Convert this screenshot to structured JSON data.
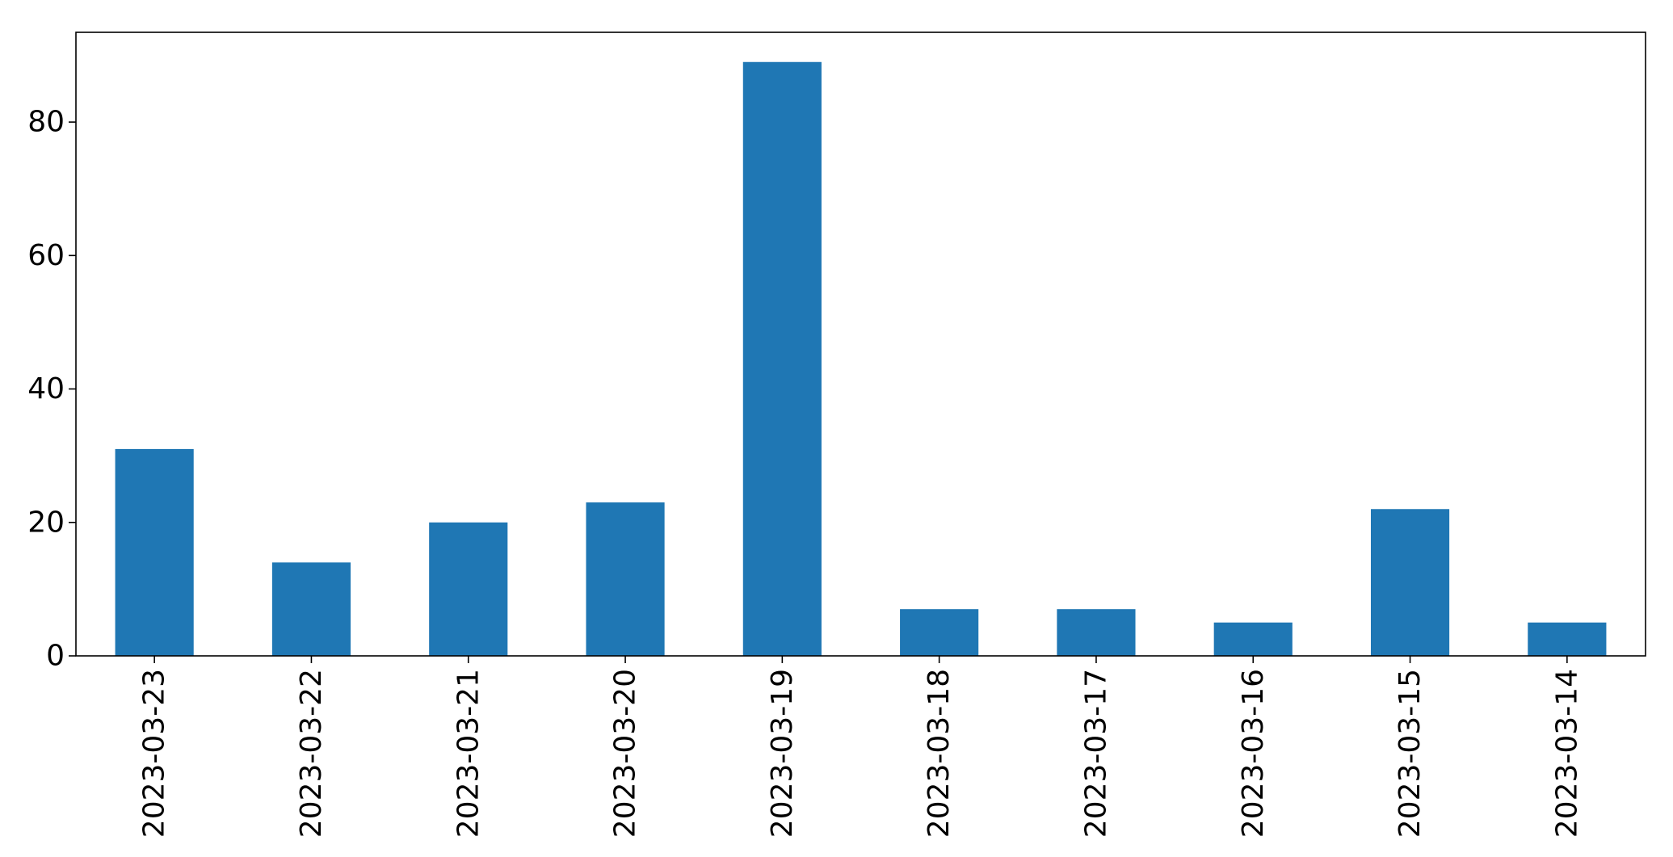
{
  "chart_data": {
    "type": "bar",
    "title": "",
    "xlabel": "",
    "ylabel": "",
    "categories": [
      "2023-03-23",
      "2023-03-22",
      "2023-03-21",
      "2023-03-20",
      "2023-03-19",
      "2023-03-18",
      "2023-03-17",
      "2023-03-16",
      "2023-03-15",
      "2023-03-14"
    ],
    "values": [
      31,
      14,
      20,
      23,
      89,
      7,
      7,
      5,
      22,
      5
    ],
    "ylim": [
      0,
      93.45
    ],
    "yticks": [
      0,
      20,
      40,
      60,
      80
    ],
    "ytick_labels": [
      "0",
      "20",
      "40",
      "60",
      "80"
    ],
    "grid": false,
    "legend": "none",
    "bar_color": "#1f77b4"
  }
}
